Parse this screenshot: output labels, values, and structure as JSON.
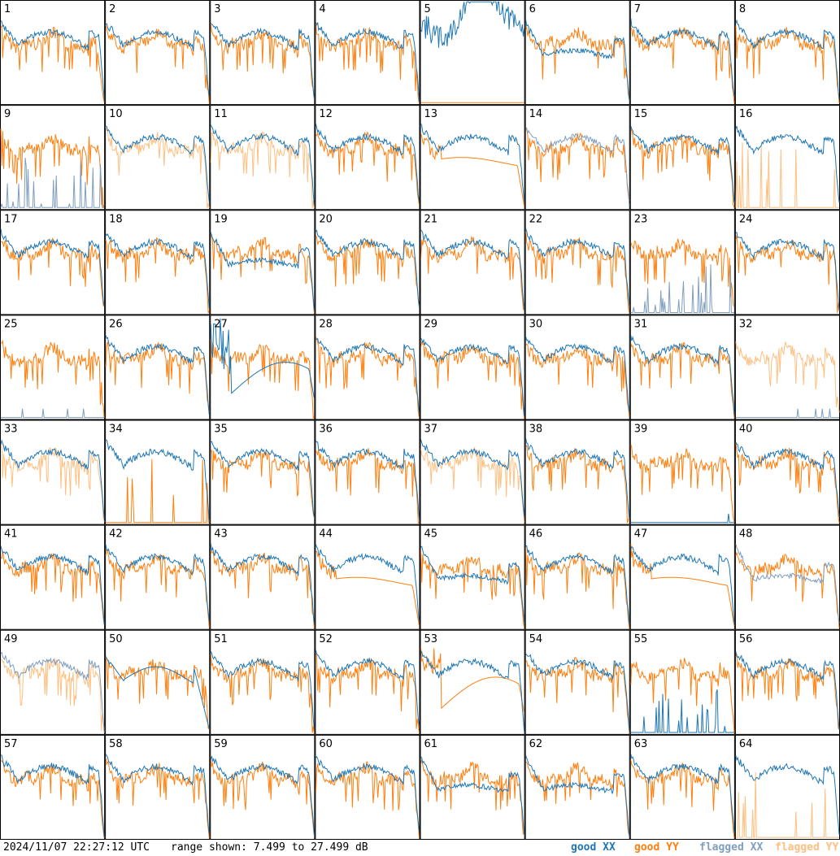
{
  "footer": {
    "timestamp": "2024/11/07 22:27:12 UTC",
    "range_text": "range shown: 7.499 to 27.499 dB"
  },
  "legend": [
    {
      "label": "good XX",
      "color": "#1f77b4"
    },
    {
      "label": "good YY",
      "color": "#ff7f0e"
    },
    {
      "label": "flagged XX",
      "color": "#7f9fbf"
    },
    {
      "label": "flagged YY",
      "color": "#ffbf80"
    }
  ],
  "chart_data": {
    "type": "line",
    "grid_rows": 8,
    "grid_cols": 8,
    "ylim": [
      7.499,
      27.499
    ],
    "y_unit": "dB",
    "panels": [
      {
        "id": "1",
        "xx": "good",
        "yy": "good",
        "shape": "normal",
        "yy_drop": true
      },
      {
        "id": "2",
        "xx": "good",
        "yy": "good",
        "shape": "normal"
      },
      {
        "id": "3",
        "xx": "good",
        "yy": "good",
        "shape": "normal"
      },
      {
        "id": "4",
        "xx": "good",
        "yy": "good",
        "shape": "normal"
      },
      {
        "id": "5",
        "xx": "good",
        "yy": "good",
        "shape": "xx_wild_yy_spikes"
      },
      {
        "id": "6",
        "xx": "good",
        "yy": "good",
        "shape": "xx_low"
      },
      {
        "id": "7",
        "xx": "good",
        "yy": "good",
        "shape": "normal"
      },
      {
        "id": "8",
        "xx": "good",
        "yy": "good",
        "shape": "normal"
      },
      {
        "id": "9",
        "xx": "flagged",
        "yy": "good",
        "shape": "xx_spikes"
      },
      {
        "id": "10",
        "xx": "good",
        "yy": "flagged",
        "shape": "normal"
      },
      {
        "id": "11",
        "xx": "good",
        "yy": "flagged",
        "shape": "normal"
      },
      {
        "id": "12",
        "xx": "good",
        "yy": "good",
        "shape": "normal"
      },
      {
        "id": "13",
        "xx": "good",
        "yy": "good",
        "shape": "yy_smooth_drop"
      },
      {
        "id": "14",
        "xx": "flagged",
        "yy": "good",
        "shape": "normal"
      },
      {
        "id": "15",
        "xx": "good",
        "yy": "good",
        "shape": "normal"
      },
      {
        "id": "16",
        "xx": "good",
        "yy": "flagged",
        "shape": "yy_spikes"
      },
      {
        "id": "17",
        "xx": "good",
        "yy": "good",
        "shape": "normal"
      },
      {
        "id": "18",
        "xx": "good",
        "yy": "good",
        "shape": "normal"
      },
      {
        "id": "19",
        "xx": "good",
        "yy": "good",
        "shape": "xx_low"
      },
      {
        "id": "20",
        "xx": "good",
        "yy": "good",
        "shape": "normal"
      },
      {
        "id": "21",
        "xx": "good",
        "yy": "good",
        "shape": "normal"
      },
      {
        "id": "22",
        "xx": "good",
        "yy": "good",
        "shape": "normal"
      },
      {
        "id": "23",
        "xx": "flagged",
        "yy": "good",
        "shape": "xx_spikes_low"
      },
      {
        "id": "24",
        "xx": "good",
        "yy": "good",
        "shape": "normal"
      },
      {
        "id": "25",
        "xx": "flagged",
        "yy": "good",
        "shape": "xx_missing"
      },
      {
        "id": "26",
        "xx": "good",
        "yy": "good",
        "shape": "normal"
      },
      {
        "id": "27",
        "xx": "good",
        "yy": "good",
        "shape": "xx_smooth_dip"
      },
      {
        "id": "28",
        "xx": "good",
        "yy": "good",
        "shape": "normal"
      },
      {
        "id": "29",
        "xx": "good",
        "yy": "good",
        "shape": "normal"
      },
      {
        "id": "30",
        "xx": "good",
        "yy": "good",
        "shape": "normal"
      },
      {
        "id": "31",
        "xx": "good",
        "yy": "good",
        "shape": "normal"
      },
      {
        "id": "32",
        "xx": "flagged",
        "yy": "flagged",
        "shape": "xx_missing"
      },
      {
        "id": "33",
        "xx": "good",
        "yy": "flagged",
        "shape": "normal"
      },
      {
        "id": "34",
        "xx": "good",
        "yy": "good",
        "shape": "yy_spikes"
      },
      {
        "id": "35",
        "xx": "good",
        "yy": "good",
        "shape": "normal"
      },
      {
        "id": "36",
        "xx": "good",
        "yy": "good",
        "shape": "normal"
      },
      {
        "id": "37",
        "xx": "good",
        "yy": "flagged",
        "shape": "normal"
      },
      {
        "id": "38",
        "xx": "good",
        "yy": "good",
        "shape": "normal"
      },
      {
        "id": "39",
        "xx": "good",
        "yy": "good",
        "shape": "xx_missing"
      },
      {
        "id": "40",
        "xx": "good",
        "yy": "good",
        "shape": "normal"
      },
      {
        "id": "41",
        "xx": "good",
        "yy": "good",
        "shape": "normal"
      },
      {
        "id": "42",
        "xx": "good",
        "yy": "good",
        "shape": "normal"
      },
      {
        "id": "43",
        "xx": "good",
        "yy": "good",
        "shape": "normal"
      },
      {
        "id": "44",
        "xx": "good",
        "yy": "good",
        "shape": "yy_smooth_drop"
      },
      {
        "id": "45",
        "xx": "good",
        "yy": "good",
        "shape": "xx_low"
      },
      {
        "id": "46",
        "xx": "good",
        "yy": "good",
        "shape": "normal"
      },
      {
        "id": "47",
        "xx": "good",
        "yy": "good",
        "shape": "yy_smooth_drop"
      },
      {
        "id": "48",
        "xx": "flagged",
        "yy": "good",
        "shape": "xx_low"
      },
      {
        "id": "49",
        "xx": "flagged",
        "yy": "flagged",
        "shape": "normal"
      },
      {
        "id": "50",
        "xx": "good",
        "yy": "good",
        "shape": "xx_drop"
      },
      {
        "id": "51",
        "xx": "good",
        "yy": "good",
        "shape": "normal"
      },
      {
        "id": "52",
        "xx": "good",
        "yy": "good",
        "shape": "normal"
      },
      {
        "id": "53",
        "xx": "good",
        "yy": "good",
        "shape": "yy_smooth_dip"
      },
      {
        "id": "54",
        "xx": "good",
        "yy": "good",
        "shape": "normal"
      },
      {
        "id": "55",
        "xx": "good",
        "yy": "good",
        "shape": "xx_spikes_low"
      },
      {
        "id": "56",
        "xx": "good",
        "yy": "good",
        "shape": "normal"
      },
      {
        "id": "57",
        "xx": "good",
        "yy": "good",
        "shape": "normal"
      },
      {
        "id": "58",
        "xx": "good",
        "yy": "good",
        "shape": "normal"
      },
      {
        "id": "59",
        "xx": "good",
        "yy": "good",
        "shape": "normal"
      },
      {
        "id": "60",
        "xx": "good",
        "yy": "good",
        "shape": "normal"
      },
      {
        "id": "61",
        "xx": "good",
        "yy": "good",
        "shape": "xx_low"
      },
      {
        "id": "62",
        "xx": "good",
        "yy": "good",
        "shape": "xx_low"
      },
      {
        "id": "63",
        "xx": "good",
        "yy": "good",
        "shape": "normal"
      },
      {
        "id": "64",
        "xx": "good",
        "yy": "flagged",
        "shape": "yy_spikes"
      }
    ]
  }
}
